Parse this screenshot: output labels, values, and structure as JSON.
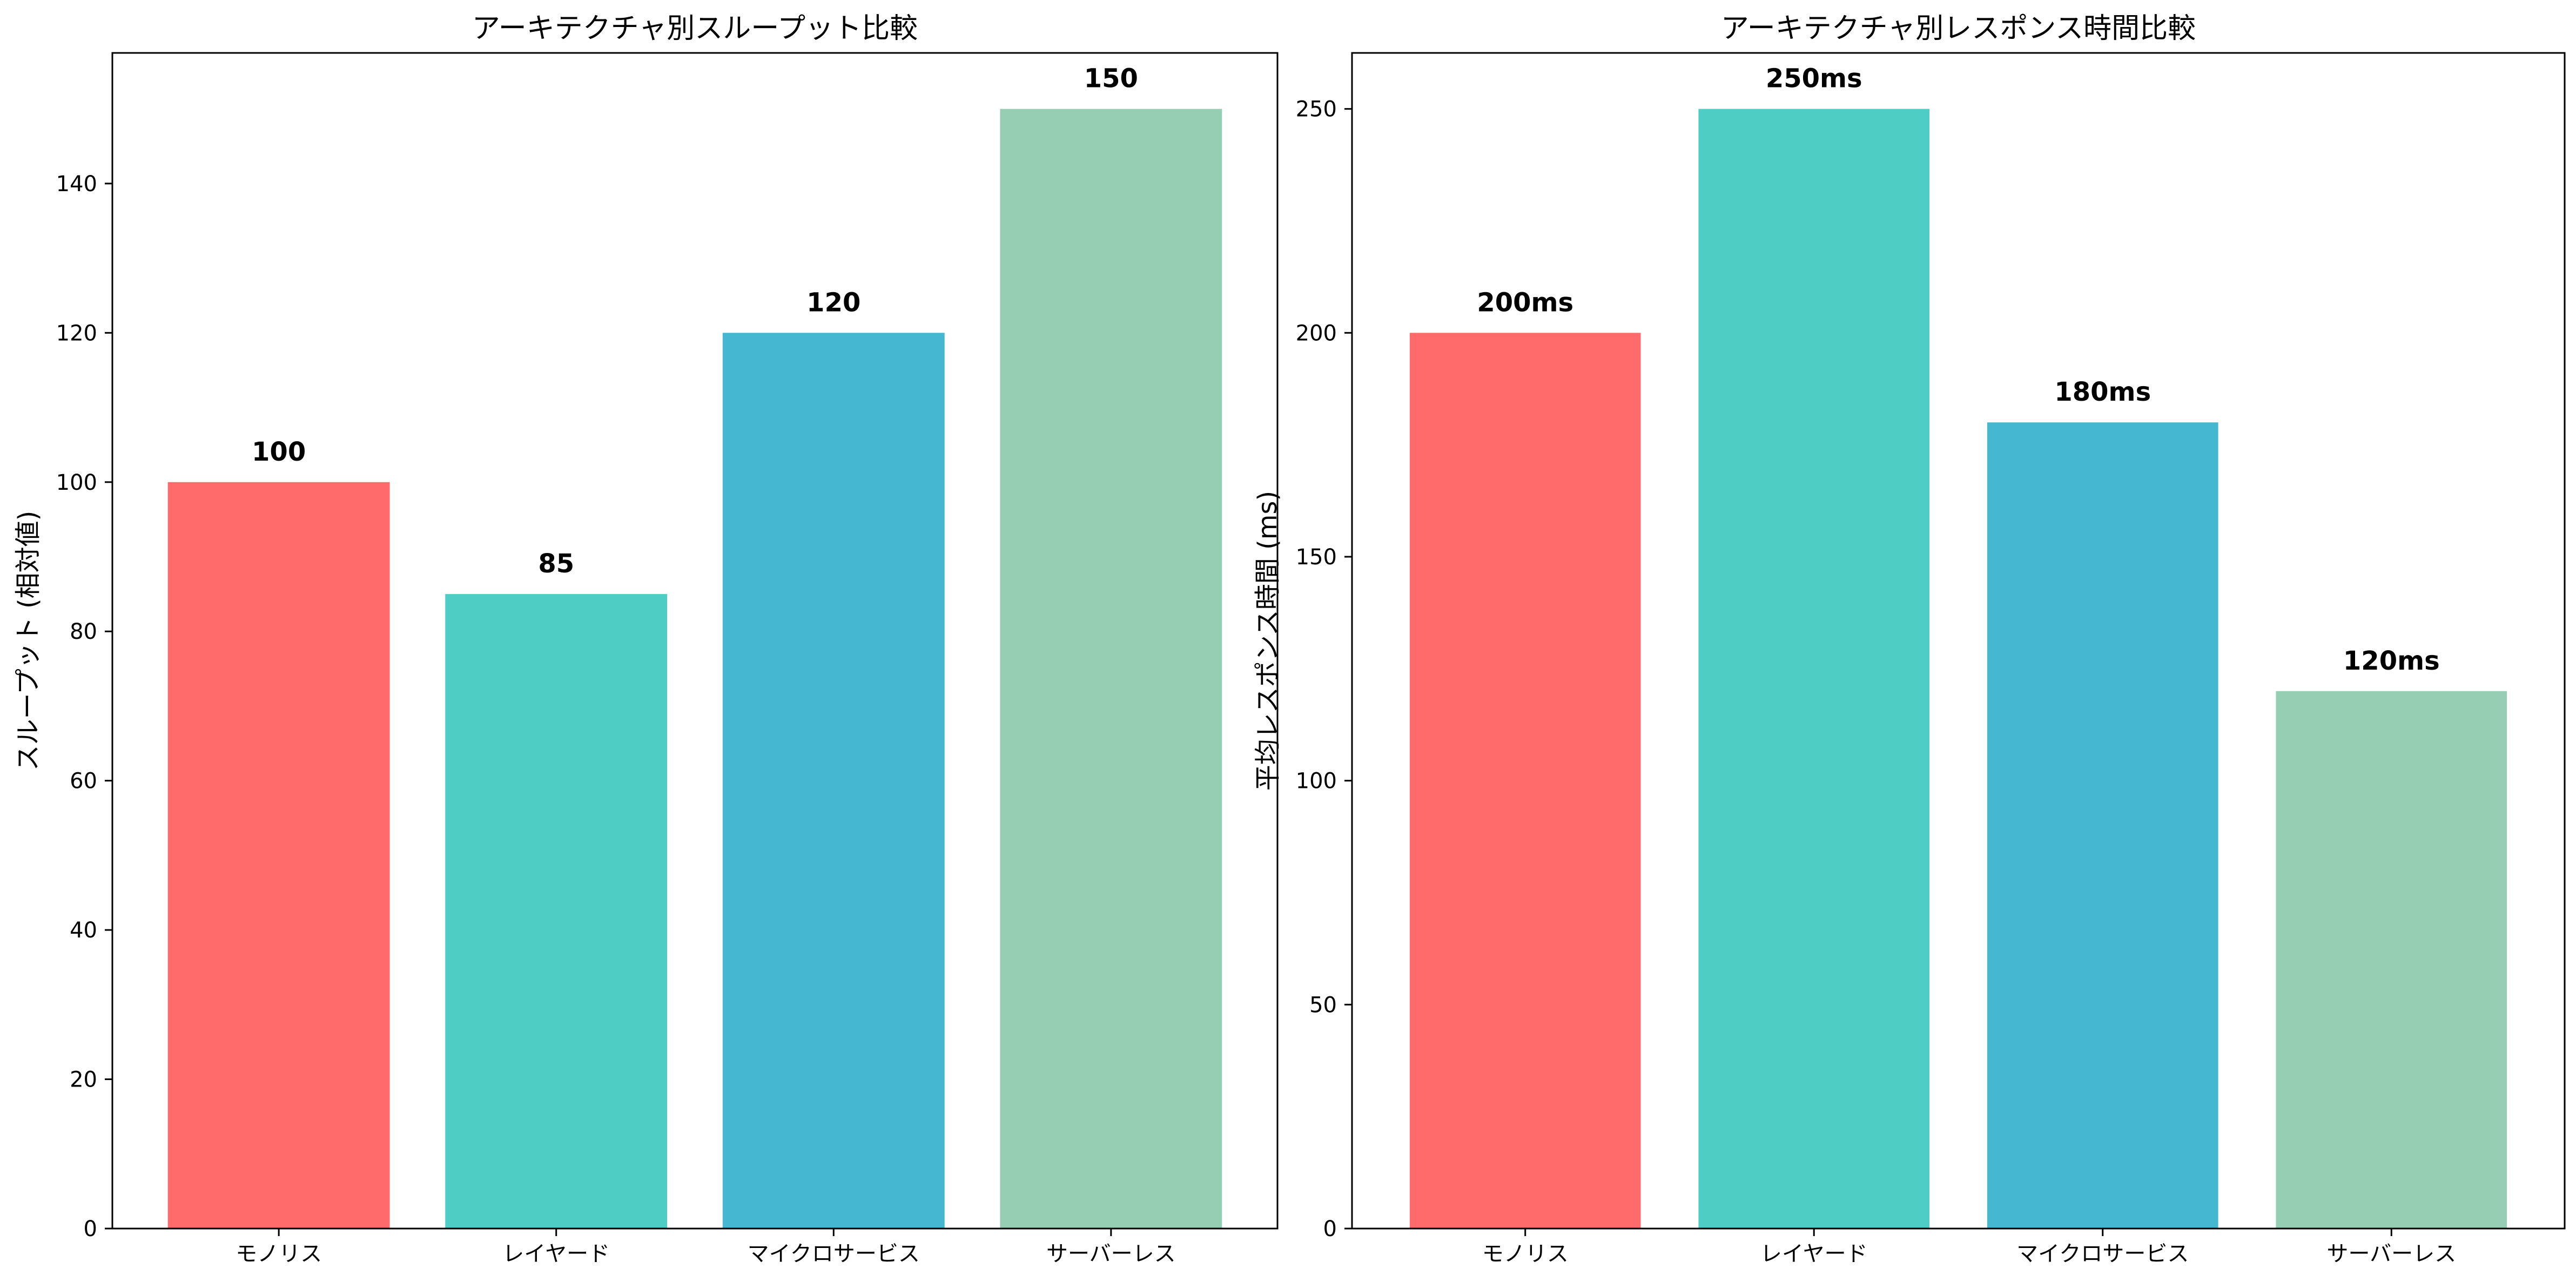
{
  "chart_data": [
    {
      "type": "bar",
      "title": "アーキテクチャ別スループット比較",
      "xlabel": "",
      "ylabel": "スループット (相対値)",
      "categories": [
        "モノリス",
        "レイヤード",
        "マイクロサービス",
        "サーバーレス"
      ],
      "values": [
        100,
        85,
        120,
        150
      ],
      "data_labels": [
        "100",
        "85",
        "120",
        "150"
      ],
      "yticks": [
        0,
        20,
        40,
        60,
        80,
        100,
        120,
        140
      ],
      "ylim": [
        0,
        157.5
      ],
      "colors": [
        "#FF6B6B",
        "#4ECDC4",
        "#45B7D1",
        "#96CEB4"
      ],
      "grid": false,
      "legend": "none"
    },
    {
      "type": "bar",
      "title": "アーキテクチャ別レスポンス時間比較",
      "xlabel": "",
      "ylabel": "平均レスポンス時間 (ms)",
      "categories": [
        "モノリス",
        "レイヤード",
        "マイクロサービス",
        "サーバーレス"
      ],
      "values": [
        200,
        250,
        180,
        120
      ],
      "data_labels": [
        "200ms",
        "250ms",
        "180ms",
        "120ms"
      ],
      "yticks": [
        0,
        50,
        100,
        150,
        200,
        250
      ],
      "ylim": [
        0,
        262.5
      ],
      "colors": [
        "#FF6B6B",
        "#4ECDC4",
        "#45B7D1",
        "#96CEB4"
      ],
      "grid": false,
      "legend": "none"
    }
  ]
}
